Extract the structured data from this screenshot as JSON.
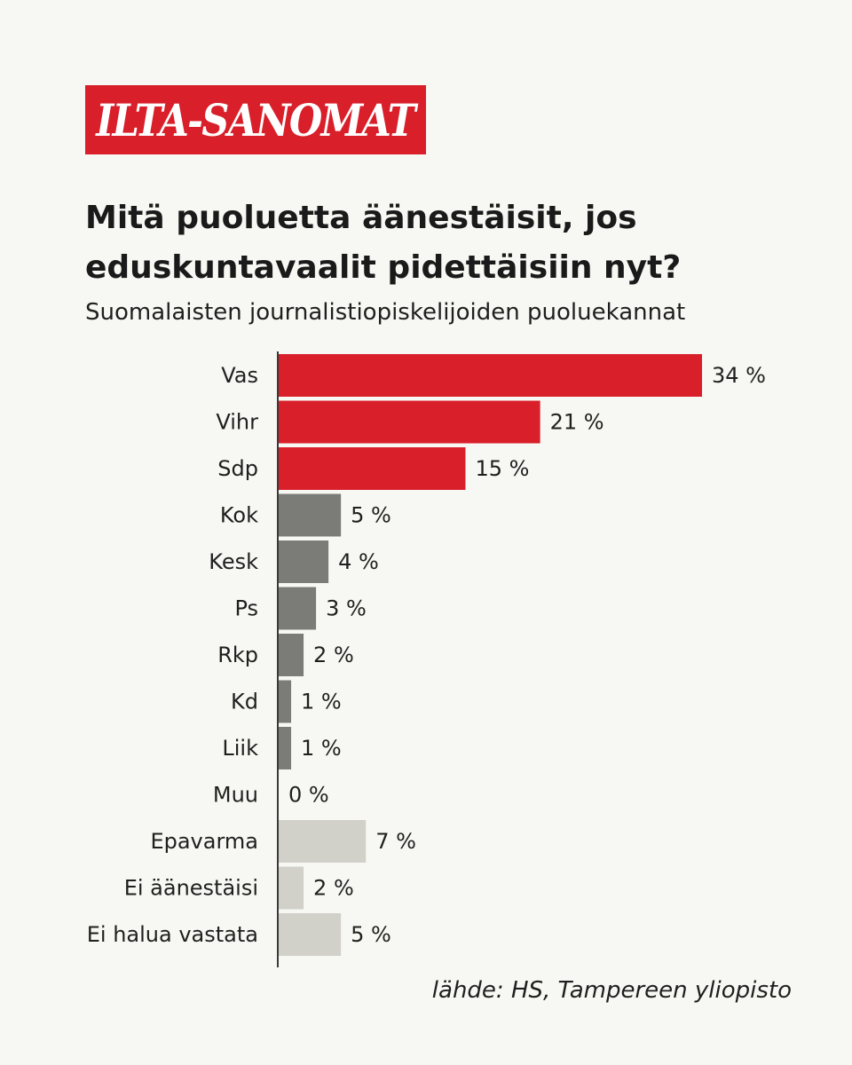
{
  "logo": {
    "text": "ILTA-SANOMAT"
  },
  "chart_data": {
    "type": "bar",
    "orientation": "horizontal",
    "title": "Mitä puoluetta äänestäisit, jos eduskuntavaalit pidettäisiin nyt?",
    "subtitle": "Suomalaisten journalistiopiskelijoiden puoluekannat",
    "categories": [
      "Vas",
      "Vihr",
      "Sdp",
      "Kok",
      "Kesk",
      "Ps",
      "Rkp",
      "Kd",
      "Liik",
      "Muu",
      "Epavarma",
      "Ei äänestäisi",
      "Ei halua vastata"
    ],
    "values": [
      34,
      21,
      15,
      5,
      4,
      3,
      2,
      1,
      1,
      0,
      7,
      2,
      5
    ],
    "value_labels": [
      "34 %",
      "21 %",
      "15 %",
      "5 %",
      "4 %",
      "3 %",
      "2 %",
      "1 %",
      "1 %",
      "0 %",
      "7 %",
      "2 %",
      "5 %"
    ],
    "bar_groups": [
      "red",
      "red",
      "red",
      "gray",
      "gray",
      "gray",
      "gray",
      "gray",
      "gray",
      "gray",
      "light",
      "light",
      "light"
    ],
    "colors": {
      "red": "#d81f2a",
      "gray": "#7b7b77",
      "light": "#d1d1ca"
    },
    "xlim": [
      0,
      34
    ],
    "grid": false,
    "legend": "none",
    "source": "lähde: HS, Tampereen yliopisto"
  }
}
